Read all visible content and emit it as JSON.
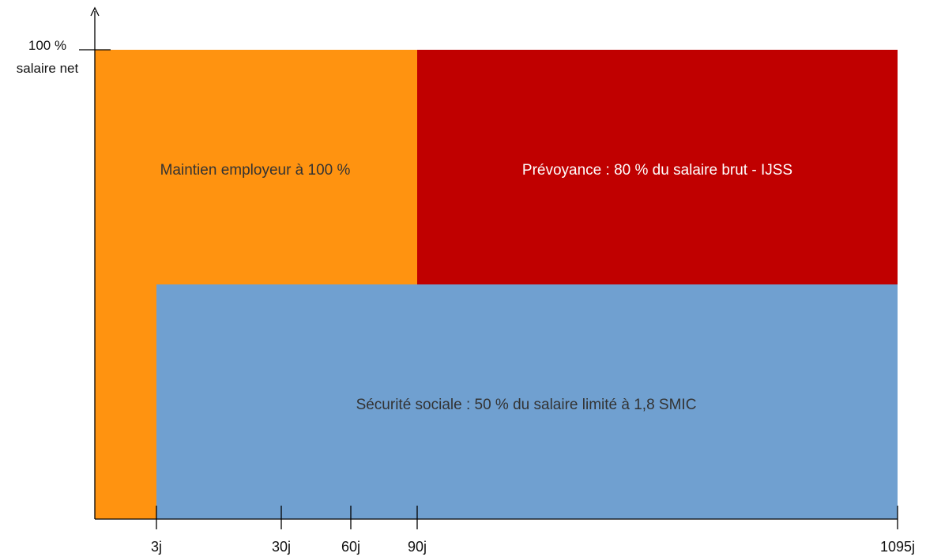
{
  "chart_data": {
    "type": "area",
    "title": "",
    "xlabel": "",
    "ylabel": "",
    "y_label_lines": [
      "100 %",
      "salaire net"
    ],
    "x_ticks": [
      {
        "value": 3,
        "label": "3j"
      },
      {
        "value": 30,
        "label": "30j"
      },
      {
        "value": 60,
        "label": "60j"
      },
      {
        "value": 90,
        "label": "90j"
      },
      {
        "value": 1095,
        "label": "1095j"
      }
    ],
    "regions": [
      {
        "id": "employer",
        "label": "Maintien employeur à 100 %",
        "color": "#FF9310",
        "text_color": "#333333",
        "segments": [
          {
            "from_day": 0,
            "to_day": 3,
            "y_from": 0,
            "y_to": 100
          },
          {
            "from_day": 3,
            "to_day": 90,
            "y_from": 50,
            "y_to": 100
          }
        ]
      },
      {
        "id": "prevoyance",
        "label": "Prévoyance : 80 % du salaire brut - IJSS",
        "color": "#C00000",
        "text_color": "#ffffff",
        "segments": [
          {
            "from_day": 90,
            "to_day": 1095,
            "y_from": 50,
            "y_to": 100
          }
        ]
      },
      {
        "id": "secu",
        "label": "Sécurité sociale : 50 % du salaire limité à 1,8 SMIC",
        "color": "#70A0D0",
        "text_color": "#333333",
        "segments": [
          {
            "from_day": 3,
            "to_day": 1095,
            "y_from": 0,
            "y_to": 50
          }
        ]
      }
    ]
  }
}
